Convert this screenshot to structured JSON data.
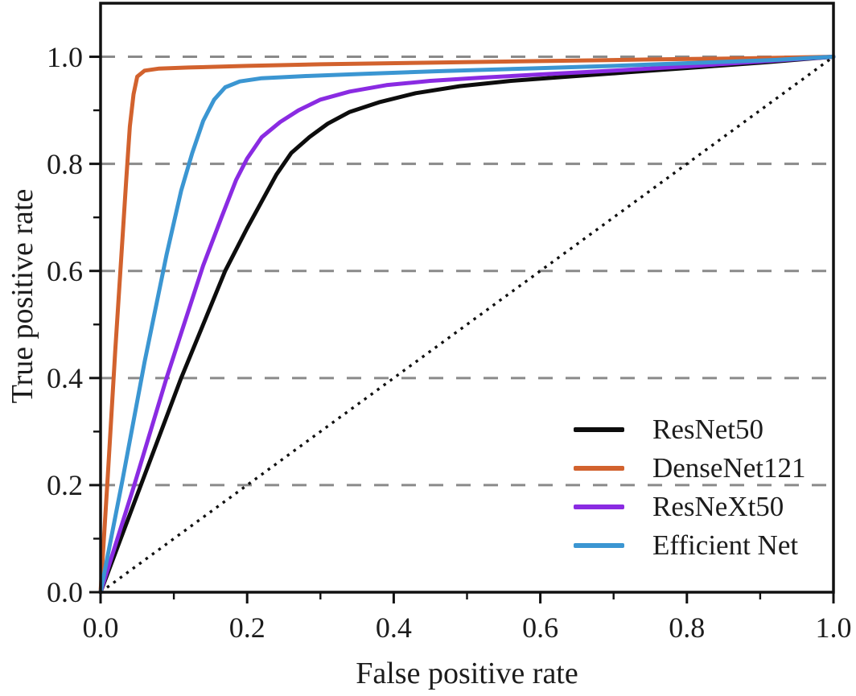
{
  "figure": {
    "background": "#ffffff",
    "text_color": "#1c1c1c",
    "frame_color": "#111111"
  },
  "chart_data": {
    "type": "line",
    "title": "",
    "xlabel": "False positive rate",
    "ylabel": "True positive rate",
    "xlim": [
      0,
      1.0
    ],
    "ylim": [
      0,
      1.1
    ],
    "xticks_major": [
      0,
      0.2,
      0.4,
      0.6,
      0.8,
      1.0
    ],
    "xtick_labels": [
      "0.0",
      "0.2",
      "0.4",
      "0.6",
      "0.8",
      "1.0"
    ],
    "xticks_minor": [
      0.1,
      0.3,
      0.5,
      0.7,
      0.9
    ],
    "yticks_major": [
      0,
      0.2,
      0.4,
      0.6,
      0.8,
      1.0
    ],
    "ytick_labels": [
      "0.0",
      "0.2",
      "0.4",
      "0.6",
      "0.8",
      "1.0"
    ],
    "yticks_minor": [
      0.1,
      0.3,
      0.5,
      0.7,
      0.9
    ],
    "grid": {
      "axis": "y",
      "values": [
        0.2,
        0.4,
        0.6,
        0.8,
        1.0
      ],
      "style": "dashed",
      "color": "#8a8a8a",
      "dash": "18 16",
      "width": 3
    },
    "reference_line": {
      "name": "chance-diagonal",
      "style": "dotted",
      "color": "#111111",
      "dash": "3.4 6.5",
      "width": 3.4,
      "points": [
        [
          0,
          0
        ],
        [
          1,
          1
        ]
      ]
    },
    "line_width": 5,
    "legend": {
      "position": "lower right",
      "entries": [
        "ResNet50",
        "DenseNet121",
        "ResNeXt50",
        "Efficient Net"
      ]
    },
    "series": [
      {
        "name": "ResNet50",
        "color": "#0d0d0d",
        "points": [
          [
            0,
            0
          ],
          [
            0.055,
            0.2
          ],
          [
            0.11,
            0.4
          ],
          [
            0.17,
            0.6
          ],
          [
            0.2,
            0.68
          ],
          [
            0.22,
            0.73
          ],
          [
            0.24,
            0.78
          ],
          [
            0.26,
            0.82
          ],
          [
            0.285,
            0.85
          ],
          [
            0.31,
            0.875
          ],
          [
            0.34,
            0.897
          ],
          [
            0.38,
            0.915
          ],
          [
            0.43,
            0.932
          ],
          [
            0.49,
            0.945
          ],
          [
            0.56,
            0.955
          ],
          [
            0.63,
            0.962
          ],
          [
            0.72,
            0.971
          ],
          [
            0.82,
            0.981
          ],
          [
            0.91,
            0.99
          ],
          [
            1,
            1
          ]
        ]
      },
      {
        "name": "DenseNet121",
        "color": "#d2622e",
        "points": [
          [
            0,
            0
          ],
          [
            0.01,
            0.22
          ],
          [
            0.02,
            0.45
          ],
          [
            0.028,
            0.62
          ],
          [
            0.035,
            0.77
          ],
          [
            0.04,
            0.87
          ],
          [
            0.045,
            0.93
          ],
          [
            0.05,
            0.963
          ],
          [
            0.06,
            0.974
          ],
          [
            0.08,
            0.978
          ],
          [
            0.12,
            0.98
          ],
          [
            0.2,
            0.983
          ],
          [
            0.3,
            0.986
          ],
          [
            0.45,
            0.989
          ],
          [
            0.6,
            0.992
          ],
          [
            0.75,
            0.995
          ],
          [
            0.88,
            0.997
          ],
          [
            1,
            1
          ]
        ]
      },
      {
        "name": "ResNeXt50",
        "color": "#8a2be2",
        "points": [
          [
            0,
            0
          ],
          [
            0.046,
            0.2
          ],
          [
            0.09,
            0.4
          ],
          [
            0.14,
            0.61
          ],
          [
            0.165,
            0.7
          ],
          [
            0.185,
            0.77
          ],
          [
            0.2,
            0.81
          ],
          [
            0.22,
            0.85
          ],
          [
            0.245,
            0.878
          ],
          [
            0.27,
            0.9
          ],
          [
            0.3,
            0.92
          ],
          [
            0.34,
            0.935
          ],
          [
            0.39,
            0.947
          ],
          [
            0.45,
            0.955
          ],
          [
            0.52,
            0.961
          ],
          [
            0.6,
            0.967
          ],
          [
            0.7,
            0.974
          ],
          [
            0.8,
            0.982
          ],
          [
            0.9,
            0.991
          ],
          [
            1,
            1
          ]
        ]
      },
      {
        "name": "Efficient Net",
        "color": "#3b96d2",
        "points": [
          [
            0,
            0
          ],
          [
            0.03,
            0.21
          ],
          [
            0.06,
            0.43
          ],
          [
            0.09,
            0.63
          ],
          [
            0.11,
            0.75
          ],
          [
            0.125,
            0.82
          ],
          [
            0.14,
            0.88
          ],
          [
            0.155,
            0.92
          ],
          [
            0.17,
            0.943
          ],
          [
            0.19,
            0.954
          ],
          [
            0.22,
            0.96
          ],
          [
            0.28,
            0.964
          ],
          [
            0.36,
            0.968
          ],
          [
            0.46,
            0.973
          ],
          [
            0.58,
            0.978
          ],
          [
            0.7,
            0.983
          ],
          [
            0.82,
            0.989
          ],
          [
            0.92,
            0.994
          ],
          [
            1,
            1
          ]
        ]
      }
    ]
  }
}
